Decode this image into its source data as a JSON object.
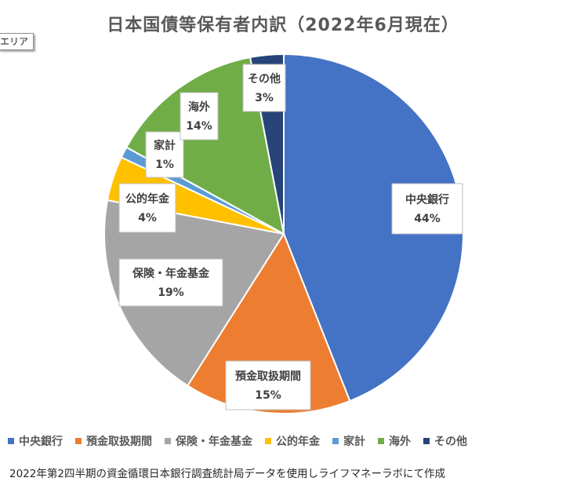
{
  "chart_area_tab": "エリア",
  "footnote": "2022年第2四半期の資金循環日本銀行調査統計局データを使用しライフマネーラボにて作成",
  "chart_data": {
    "type": "pie",
    "title": "日本国債等保有者内訳（2022年6月現在）",
    "unit": "%",
    "legend_position": "bottom",
    "slices": [
      {
        "name": "中央銀行",
        "value": 44,
        "label": "44%",
        "color": "#4472c4"
      },
      {
        "name": "預金取扱期間",
        "value": 15,
        "label": "15%",
        "color": "#ed7d31"
      },
      {
        "name": "保険・年金基金",
        "value": 19,
        "label": "19%",
        "color": "#a5a5a5"
      },
      {
        "name": "公的年金",
        "value": 4,
        "label": "4%",
        "color": "#ffc000"
      },
      {
        "name": "家計",
        "value": 1,
        "label": "1%",
        "color": "#5b9bd5"
      },
      {
        "name": "海外",
        "value": 14,
        "label": "14%",
        "color": "#70ad47"
      },
      {
        "name": "その他",
        "value": 3,
        "label": "3%",
        "color": "#264478"
      }
    ]
  }
}
